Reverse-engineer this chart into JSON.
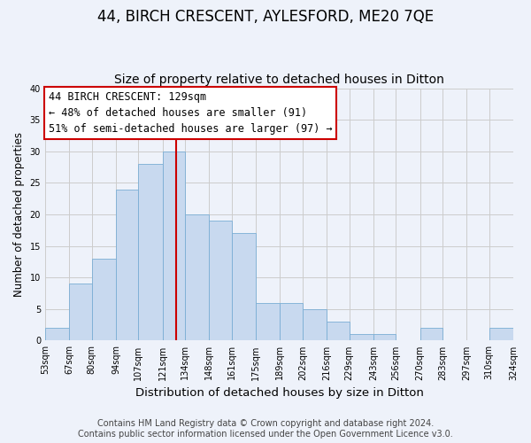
{
  "title": "44, BIRCH CRESCENT, AYLESFORD, ME20 7QE",
  "subtitle": "Size of property relative to detached houses in Ditton",
  "xlabel": "Distribution of detached houses by size in Ditton",
  "ylabel": "Number of detached properties",
  "footer_line1": "Contains HM Land Registry data © Crown copyright and database right 2024.",
  "footer_line2": "Contains public sector information licensed under the Open Government Licence v3.0.",
  "bin_labels": [
    "53sqm",
    "67sqm",
    "80sqm",
    "94sqm",
    "107sqm",
    "121sqm",
    "134sqm",
    "148sqm",
    "161sqm",
    "175sqm",
    "189sqm",
    "202sqm",
    "216sqm",
    "229sqm",
    "243sqm",
    "256sqm",
    "270sqm",
    "283sqm",
    "297sqm",
    "310sqm",
    "324sqm"
  ],
  "bin_edges": [
    53,
    67,
    80,
    94,
    107,
    121,
    134,
    148,
    161,
    175,
    189,
    202,
    216,
    229,
    243,
    256,
    270,
    283,
    297,
    310,
    324
  ],
  "bar_heights": [
    2,
    9,
    13,
    24,
    28,
    30,
    20,
    19,
    17,
    6,
    6,
    5,
    3,
    1,
    1,
    0,
    2,
    0,
    0,
    2
  ],
  "bar_color": "#c8d9ef",
  "bar_edge_color": "#7aadd4",
  "vline_x": 129,
  "vline_color": "#cc0000",
  "annotation_text_line1": "44 BIRCH CRESCENT: 129sqm",
  "annotation_text_line2": "← 48% of detached houses are smaller (91)",
  "annotation_text_line3": "51% of semi-detached houses are larger (97) →",
  "annotation_box_color": "#ffffff",
  "annotation_box_edge_color": "#cc0000",
  "ylim": [
    0,
    40
  ],
  "yticks": [
    0,
    5,
    10,
    15,
    20,
    25,
    30,
    35,
    40
  ],
  "grid_color": "#cccccc",
  "background_color": "#eef2fa",
  "title_fontsize": 12,
  "subtitle_fontsize": 10,
  "xlabel_fontsize": 9.5,
  "ylabel_fontsize": 8.5,
  "tick_fontsize": 7,
  "annotation_fontsize": 8.5,
  "footer_fontsize": 7
}
